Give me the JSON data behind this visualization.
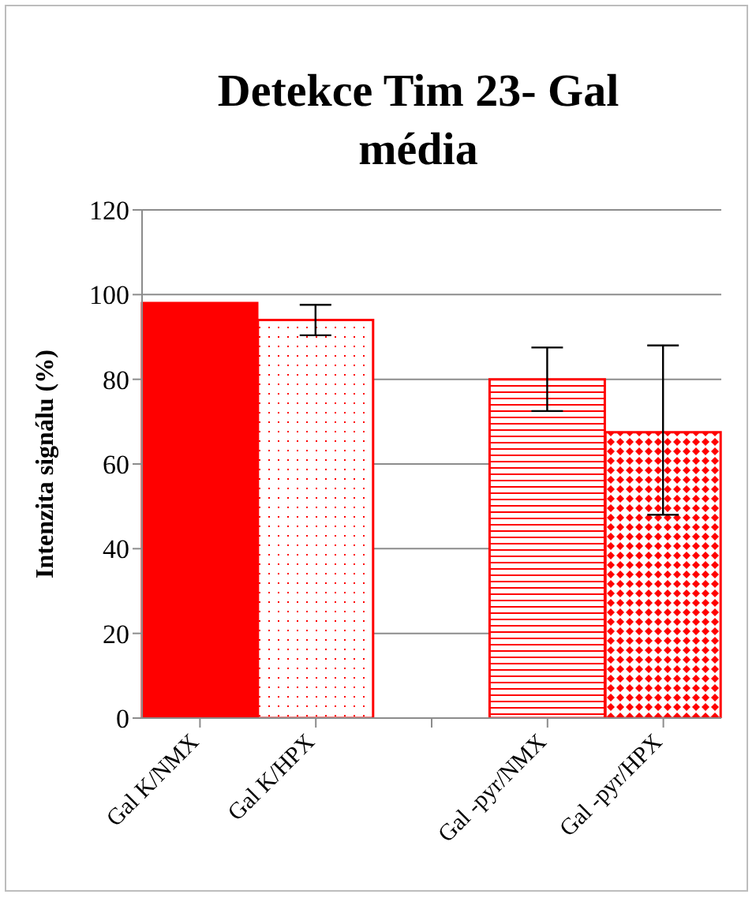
{
  "chart_data": {
    "type": "bar",
    "title": "Detekce Tim 23- Gal média",
    "ylabel": "Intenzita signálu (%)",
    "categories": [
      "Gal K/NMX",
      "Gal K/HPX",
      null,
      "Gal -pyr/NMX",
      "Gal -pyr/HPX"
    ],
    "values": [
      98,
      94,
      null,
      80,
      67.5
    ],
    "errors": [
      null,
      [
        90.4,
        97.6
      ],
      null,
      [
        72.5,
        87.5
      ],
      [
        48,
        88
      ]
    ],
    "colors": [
      "#ff0000",
      "#ff0000",
      "#ff0000",
      "#ff0000",
      "#ff0000"
    ],
    "ylim": [
      0,
      120
    ],
    "yticks": [
      0,
      20,
      40,
      60,
      80,
      100,
      120
    ],
    "grid": "y",
    "legend": false
  }
}
